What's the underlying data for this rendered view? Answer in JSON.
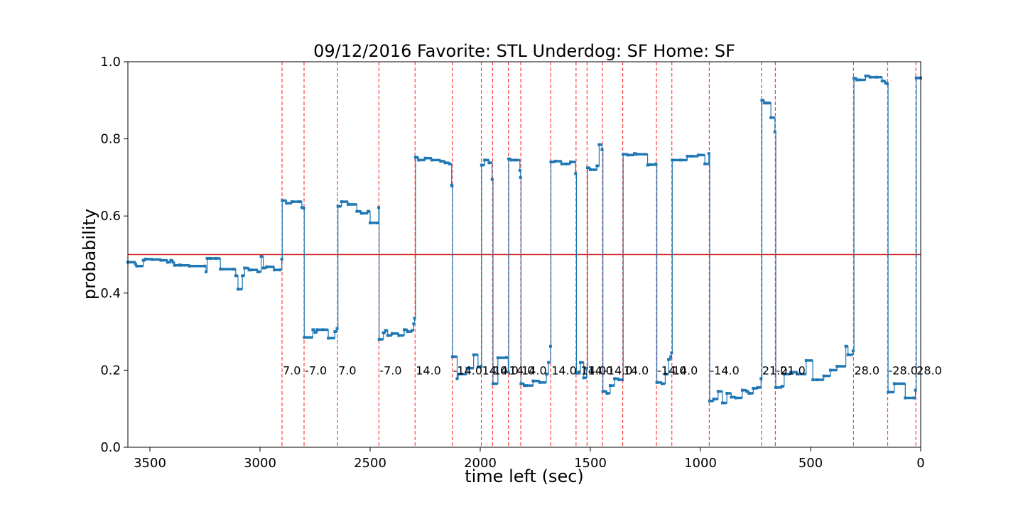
{
  "chart_data": {
    "type": "line",
    "title": "09/12/2016 Favorite: STL Underdog: SF Home: SF",
    "xlabel": "time left (sec)",
    "ylabel": "probability",
    "xlim": [
      3600,
      0
    ],
    "ylim": [
      0.0,
      1.0
    ],
    "x_reversed": true,
    "xticks": [
      3500,
      3000,
      2500,
      2000,
      1500,
      1000,
      500,
      0
    ],
    "yticks": [
      0.0,
      0.2,
      0.4,
      0.6,
      0.8,
      1.0
    ],
    "xtick_labels": [
      "3500",
      "3000",
      "2500",
      "2000",
      "1500",
      "1000",
      "500",
      "0"
    ],
    "ytick_labels": [
      "0.0",
      "0.2",
      "0.4",
      "0.6",
      "0.8",
      "1.0"
    ],
    "reference_line": {
      "y": 0.5,
      "color": "#d62728"
    },
    "colors": {
      "series": "#1f77b4",
      "events": "#ff0000",
      "reference": "#d62728"
    },
    "grid": false,
    "event_lines": [
      {
        "x": 2900,
        "label": "7.0"
      },
      {
        "x": 2800,
        "label": "-7.0"
      },
      {
        "x": 2648,
        "label": "7.0"
      },
      {
        "x": 2460,
        "label": "-7.0"
      },
      {
        "x": 2296,
        "label": "14.0"
      },
      {
        "x": 2127,
        "label": "-14.0"
      },
      {
        "x": 1995,
        "label": "14.0"
      },
      {
        "x": 1944,
        "label": "14.0"
      },
      {
        "x": 1872,
        "label": "14.0"
      },
      {
        "x": 1816,
        "label": "14.0"
      },
      {
        "x": 1680,
        "label": "14.0"
      },
      {
        "x": 1565,
        "label": "-14.0"
      },
      {
        "x": 1515,
        "label": "14.0"
      },
      {
        "x": 1445,
        "label": "-14.0"
      },
      {
        "x": 1353,
        "label": "14.0"
      },
      {
        "x": 1200,
        "label": "-14.0"
      },
      {
        "x": 1130,
        "label": "14.0"
      },
      {
        "x": 960,
        "label": "-14.0"
      },
      {
        "x": 723,
        "label": "21.0"
      },
      {
        "x": 660,
        "label": "-21.0"
      },
      {
        "x": 305,
        "label": "28.0"
      },
      {
        "x": 150,
        "label": "-28.0"
      },
      {
        "x": 22,
        "label": "28.0"
      }
    ],
    "series": [
      {
        "x": [
          3600,
          3565,
          3560,
          3530,
          3520,
          3490,
          3450,
          3420,
          3405,
          3395,
          3388,
          3365,
          3360,
          3320,
          3250,
          3245,
          3240,
          3225,
          3200,
          3180,
          3120,
          3110,
          3100,
          3080,
          3070,
          3050,
          3040,
          3010,
          2995,
          2985,
          2970,
          2935,
          2910,
          2901,
          2899,
          2880,
          2855,
          2820,
          2810,
          2801,
          2799,
          2760,
          2750,
          2740,
          2715,
          2690,
          2660,
          2650,
          2646,
          2630,
          2600,
          2560,
          2540,
          2510,
          2500,
          2465,
          2461,
          2459,
          2440,
          2430,
          2420,
          2400,
          2370,
          2345,
          2330,
          2310,
          2302,
          2298,
          2294,
          2280,
          2250,
          2220,
          2180,
          2160,
          2140,
          2130,
          2128,
          2126,
          2105,
          2100,
          2060,
          2030,
          2010,
          1996,
          1994,
          1980,
          1960,
          1946,
          1942,
          1920,
          1880,
          1873,
          1871,
          1860,
          1840,
          1820,
          1817,
          1815,
          1800,
          1790,
          1760,
          1730,
          1700,
          1690,
          1681,
          1679,
          1660,
          1630,
          1610,
          1590,
          1567,
          1563,
          1545,
          1530,
          1517,
          1513,
          1500,
          1470,
          1460,
          1447,
          1443,
          1425,
          1410,
          1390,
          1370,
          1355,
          1351,
          1330,
          1300,
          1290,
          1240,
          1230,
          1202,
          1198,
          1175,
          1160,
          1145,
          1135,
          1131,
          1128,
          1090,
          1060,
          1040,
          1010,
          980,
          962,
          958,
          940,
          920,
          900,
          880,
          860,
          840,
          810,
          790,
          780,
          760,
          740,
          725,
          721,
          710,
          700,
          690,
          680,
          662,
          658,
          630,
          620,
          590,
          560,
          520,
          490,
          470,
          440,
          410,
          380,
          340,
          330,
          307,
          303,
          290,
          280,
          250,
          230,
          200,
          175,
          160,
          152,
          148,
          120,
          70,
          30,
          24,
          20,
          5,
          0
        ],
        "y": [
          0.48,
          0.475,
          0.47,
          0.485,
          0.488,
          0.487,
          0.485,
          0.48,
          0.485,
          0.48,
          0.472,
          0.473,
          0.472,
          0.47,
          0.47,
          0.455,
          0.49,
          0.49,
          0.49,
          0.462,
          0.462,
          0.445,
          0.41,
          0.445,
          0.465,
          0.46,
          0.46,
          0.455,
          0.495,
          0.465,
          0.468,
          0.46,
          0.46,
          0.488,
          0.64,
          0.633,
          0.637,
          0.637,
          0.622,
          0.62,
          0.285,
          0.305,
          0.298,
          0.305,
          0.305,
          0.283,
          0.3,
          0.308,
          0.625,
          0.637,
          0.63,
          0.612,
          0.607,
          0.612,
          0.582,
          0.582,
          0.622,
          0.28,
          0.297,
          0.303,
          0.29,
          0.295,
          0.29,
          0.305,
          0.3,
          0.303,
          0.32,
          0.335,
          0.752,
          0.745,
          0.75,
          0.745,
          0.742,
          0.738,
          0.735,
          0.68,
          0.678,
          0.235,
          0.178,
          0.19,
          0.205,
          0.24,
          0.208,
          0.21,
          0.732,
          0.745,
          0.738,
          0.695,
          0.165,
          0.232,
          0.233,
          0.195,
          0.748,
          0.745,
          0.745,
          0.718,
          0.7,
          0.165,
          0.16,
          0.16,
          0.172,
          0.168,
          0.19,
          0.22,
          0.262,
          0.74,
          0.742,
          0.735,
          0.735,
          0.74,
          0.71,
          0.192,
          0.22,
          0.18,
          0.205,
          0.725,
          0.72,
          0.73,
          0.785,
          0.772,
          0.145,
          0.14,
          0.16,
          0.178,
          0.175,
          0.175,
          0.76,
          0.758,
          0.762,
          0.76,
          0.732,
          0.733,
          0.735,
          0.168,
          0.165,
          0.19,
          0.228,
          0.235,
          0.245,
          0.745,
          0.745,
          0.755,
          0.755,
          0.758,
          0.735,
          0.762,
          0.12,
          0.125,
          0.145,
          0.115,
          0.14,
          0.13,
          0.128,
          0.148,
          0.145,
          0.14,
          0.153,
          0.155,
          0.178,
          0.9,
          0.893,
          0.893,
          0.893,
          0.855,
          0.818,
          0.155,
          0.158,
          0.19,
          0.195,
          0.19,
          0.225,
          0.175,
          0.175,
          0.185,
          0.2,
          0.21,
          0.262,
          0.24,
          0.25,
          0.957,
          0.953,
          0.953,
          0.963,
          0.96,
          0.96,
          0.95,
          0.945,
          0.943,
          0.143,
          0.165,
          0.128,
          0.128,
          0.148,
          0.958,
          0.958,
          0.958
        ]
      }
    ]
  }
}
